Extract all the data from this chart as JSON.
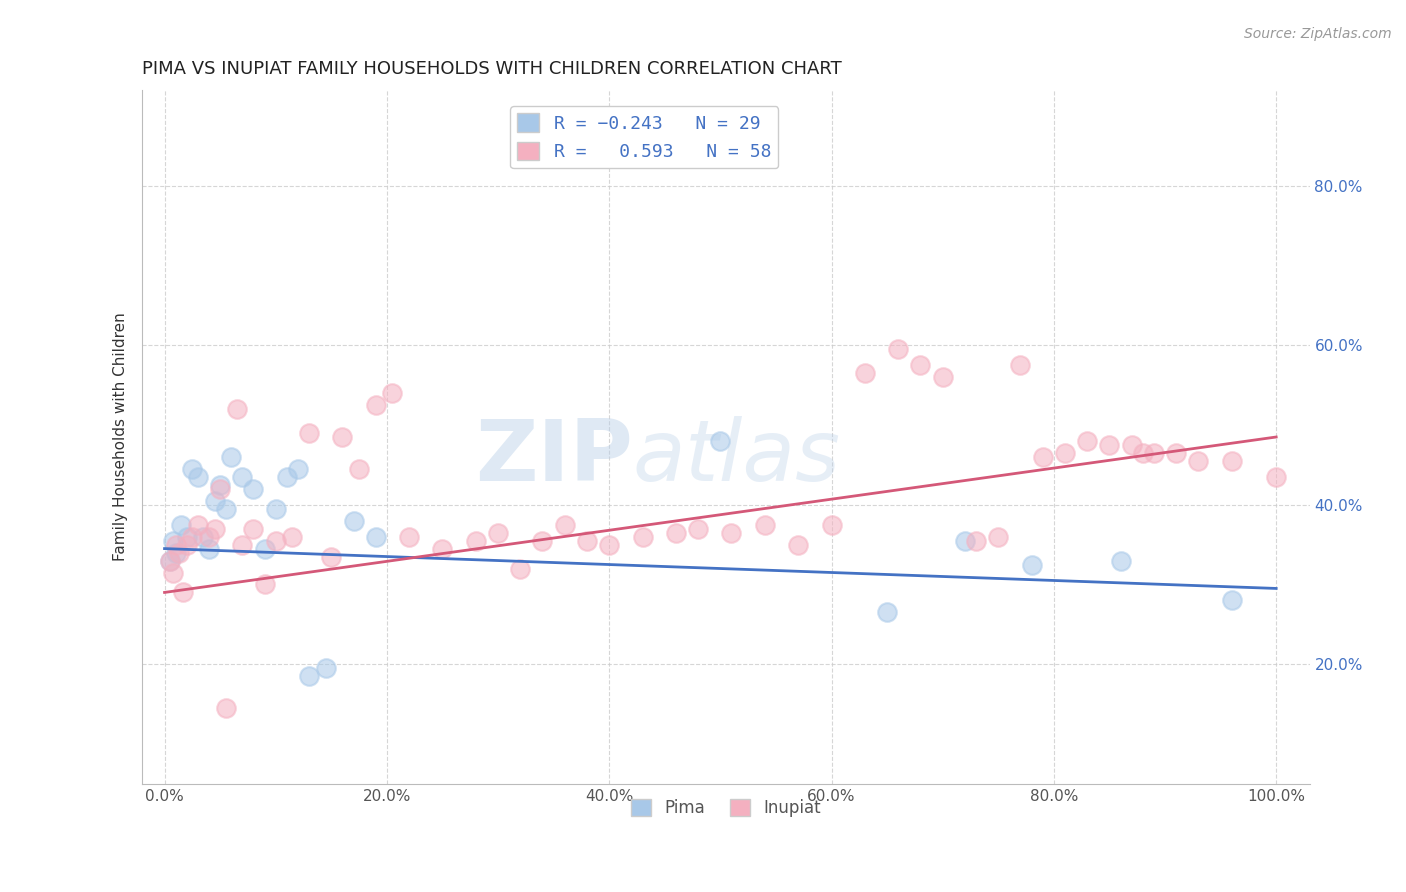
{
  "title": "PIMA VS INUPIAT FAMILY HOUSEHOLDS WITH CHILDREN CORRELATION CHART",
  "source": "Source: ZipAtlas.com",
  "xlabel": "",
  "ylabel": "Family Households with Children",
  "x_ticks": [
    0.0,
    20.0,
    40.0,
    60.0,
    80.0,
    100.0
  ],
  "y_ticks": [
    20.0,
    40.0,
    60.0,
    80.0
  ],
  "xlim": [
    -2,
    103
  ],
  "ylim": [
    5,
    92
  ],
  "pima_R": -0.243,
  "pima_N": 29,
  "inupiat_R": 0.593,
  "inupiat_N": 58,
  "pima_color": "#a8c8e8",
  "inupiat_color": "#f4b0c0",
  "pima_line_color": "#4472c4",
  "inupiat_line_color": "#d45878",
  "watermark_zip": "ZIP",
  "watermark_atlas": "atlas",
  "tick_color": "#4472c4",
  "pima_x": [
    0.5,
    0.8,
    1.0,
    1.5,
    2.0,
    2.5,
    3.0,
    3.5,
    4.0,
    4.5,
    5.0,
    5.5,
    6.0,
    7.0,
    8.0,
    9.0,
    10.0,
    11.0,
    12.0,
    13.0,
    14.5,
    17.0,
    19.0,
    50.0,
    65.0,
    72.0,
    78.0,
    86.0,
    96.0
  ],
  "pima_y": [
    33.0,
    35.5,
    34.0,
    37.5,
    36.0,
    44.5,
    43.5,
    36.0,
    34.5,
    40.5,
    42.5,
    39.5,
    46.0,
    43.5,
    42.0,
    34.5,
    39.5,
    43.5,
    44.5,
    18.5,
    19.5,
    38.0,
    36.0,
    48.0,
    26.5,
    35.5,
    32.5,
    33.0,
    28.0
  ],
  "inupiat_x": [
    0.5,
    0.8,
    1.0,
    1.3,
    1.7,
    2.0,
    2.5,
    3.0,
    4.0,
    4.5,
    5.0,
    5.5,
    6.5,
    7.0,
    8.0,
    9.0,
    10.0,
    11.5,
    13.0,
    15.0,
    16.0,
    17.5,
    19.0,
    20.5,
    22.0,
    25.0,
    28.0,
    30.0,
    32.0,
    34.0,
    36.0,
    38.0,
    40.0,
    43.0,
    46.0,
    48.0,
    51.0,
    54.0,
    57.0,
    60.0,
    63.0,
    66.0,
    68.0,
    70.0,
    73.0,
    75.0,
    77.0,
    79.0,
    81.0,
    83.0,
    85.0,
    87.0,
    88.0,
    89.0,
    91.0,
    93.0,
    96.0,
    100.0
  ],
  "inupiat_y": [
    33.0,
    31.5,
    35.0,
    34.0,
    29.0,
    35.0,
    36.0,
    37.5,
    36.0,
    37.0,
    42.0,
    14.5,
    52.0,
    35.0,
    37.0,
    30.0,
    35.5,
    36.0,
    49.0,
    33.5,
    48.5,
    44.5,
    52.5,
    54.0,
    36.0,
    34.5,
    35.5,
    36.5,
    32.0,
    35.5,
    37.5,
    35.5,
    35.0,
    36.0,
    36.5,
    37.0,
    36.5,
    37.5,
    35.0,
    37.5,
    56.5,
    59.5,
    57.5,
    56.0,
    35.5,
    36.0,
    57.5,
    46.0,
    46.5,
    48.0,
    47.5,
    47.5,
    46.5,
    46.5,
    46.5,
    45.5,
    45.5,
    43.5
  ]
}
